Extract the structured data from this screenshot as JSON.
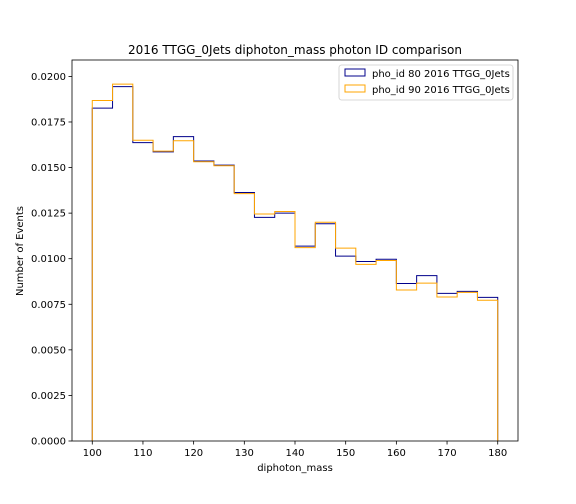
{
  "chart_data": {
    "type": "step-histogram",
    "title": "2016 TTGG_0Jets diphoton_mass photon ID comparison",
    "xlabel": "diphoton_mass",
    "ylabel": "Number of Events",
    "xlim": [
      96,
      184
    ],
    "ylim": [
      0,
      0.0209
    ],
    "xticks": [
      100,
      110,
      120,
      130,
      140,
      150,
      160,
      170,
      180
    ],
    "yticks": [
      0.0,
      0.0025,
      0.005,
      0.0075,
      0.01,
      0.0125,
      0.015,
      0.0175,
      0.02
    ],
    "ytick_labels": [
      "0.0000",
      "0.0025",
      "0.0050",
      "0.0075",
      "0.0100",
      "0.0125",
      "0.0150",
      "0.0175",
      "0.0200"
    ],
    "bin_edges": [
      100,
      104,
      108,
      112,
      116,
      120,
      124,
      128,
      132,
      136,
      140,
      144,
      148,
      152,
      156,
      160,
      164,
      168,
      172,
      176,
      180
    ],
    "legend_position": "upper right",
    "series": [
      {
        "name": "pho_id 80 2016 TTGG_0Jets",
        "color": "#00008b",
        "values": [
          0.01826,
          0.01944,
          0.01637,
          0.01586,
          0.0167,
          0.01536,
          0.01513,
          0.01363,
          0.01227,
          0.0125,
          0.01069,
          0.01192,
          0.01014,
          0.00985,
          0.00997,
          0.00864,
          0.00907,
          0.0081,
          0.00821,
          0.00788
        ]
      },
      {
        "name": "pho_id 90 2016 TTGG_0Jets",
        "color": "#ffa500",
        "values": [
          0.01868,
          0.01958,
          0.0165,
          0.0159,
          0.01647,
          0.01532,
          0.0151,
          0.01357,
          0.01245,
          0.01259,
          0.01061,
          0.012,
          0.01058,
          0.00969,
          0.0099,
          0.00828,
          0.00866,
          0.0079,
          0.00815,
          0.00772
        ]
      }
    ]
  }
}
